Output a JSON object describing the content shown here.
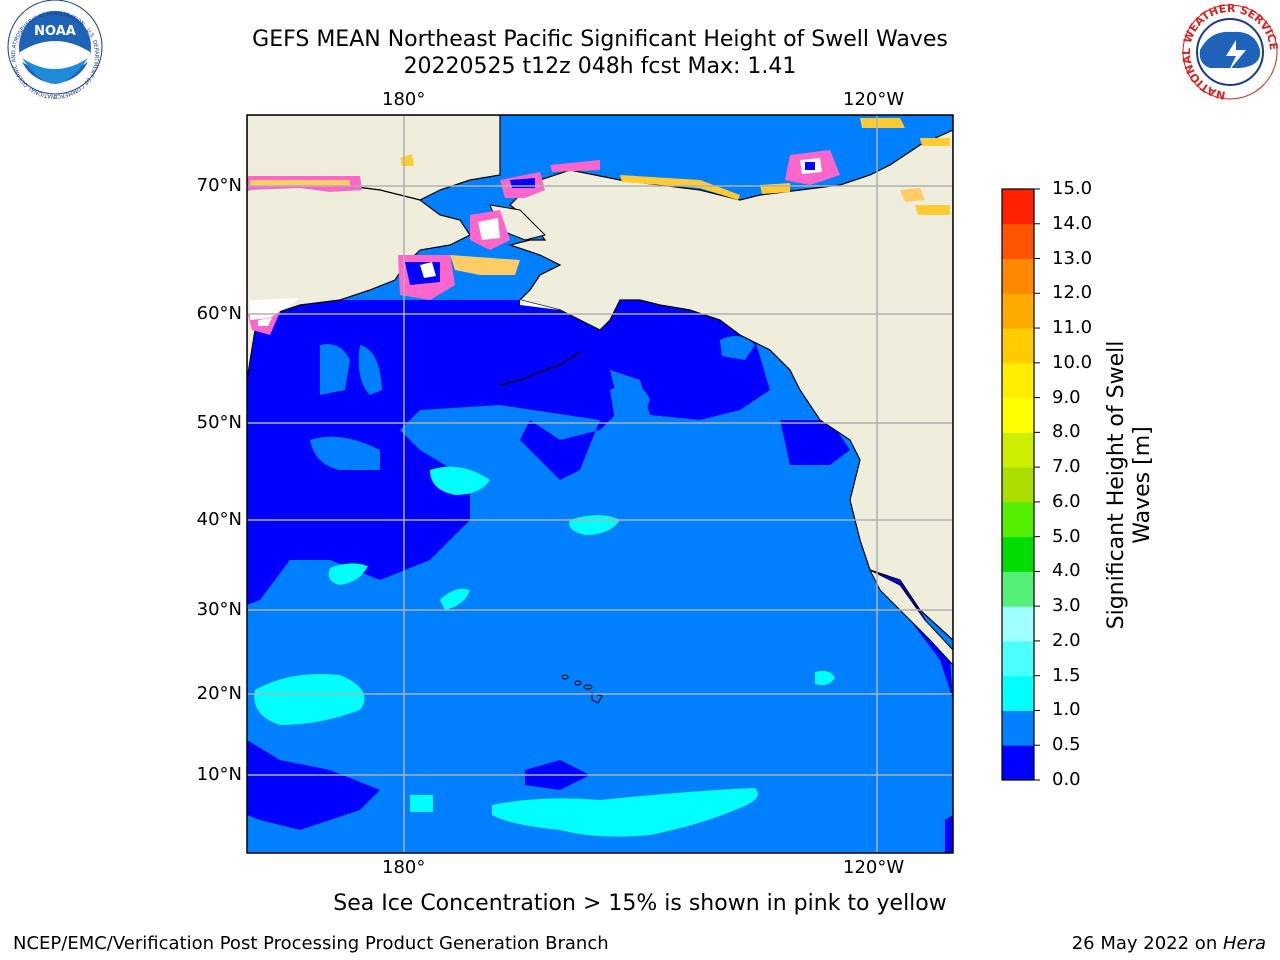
{
  "title": "GEFS MEAN Northeast Pacific Significant Height of Swell Waves",
  "subtitle": "20220525 t12z 048h fcst   Max: 1.41",
  "map": {
    "lon_labels": [
      "180°",
      "120°W"
    ],
    "lat_labels": [
      "70°N",
      "60°N",
      "50°N",
      "40°N",
      "30°N",
      "20°N",
      "10°N"
    ],
    "colors": {
      "land": "#efeedc",
      "ocean_0_05": "#0000ff",
      "ocean_05_10": "#0080ff",
      "ocean_10_15": "#00ffff",
      "ice_pink": "#ff66cc",
      "ice_yellow": "#ffcc33",
      "grid": "#b0b0b0"
    }
  },
  "colorbar": {
    "label": "Significant Height of Swell Waves [m]",
    "ticks": [
      "0.0",
      "0.5",
      "1.0",
      "1.5",
      "2.0",
      "3.0",
      "4.0",
      "5.0",
      "6.0",
      "7.0",
      "8.0",
      "9.0",
      "10.0",
      "11.0",
      "12.0",
      "13.0",
      "14.0",
      "15.0"
    ],
    "colors": [
      "#0000ff",
      "#0080ff",
      "#00ffff",
      "#4dffff",
      "#a0ffff",
      "#55ee77",
      "#00dd00",
      "#55ee00",
      "#aadd00",
      "#ccee00",
      "#ffff00",
      "#ffee00",
      "#ffcc00",
      "#ffaa00",
      "#ff8800",
      "#ff5500",
      "#ff2200"
    ]
  },
  "logos": {
    "noaa_text": "NOAA",
    "noaa_ring": "NATIONAL OCEANIC AND ATMOSPHERIC ADMINISTRATION · U.S. DEPARTMENT OF COMMERCE",
    "nws_ring": "NATIONAL WEATHER SERVICE"
  },
  "note": "Sea Ice Concentration > 15% is shown in pink to yellow",
  "footer": {
    "left": "NCEP/EMC/Verification Post Processing Product Generation Branch",
    "right_date": "26 May 2022 on ",
    "right_host": "Hera"
  }
}
